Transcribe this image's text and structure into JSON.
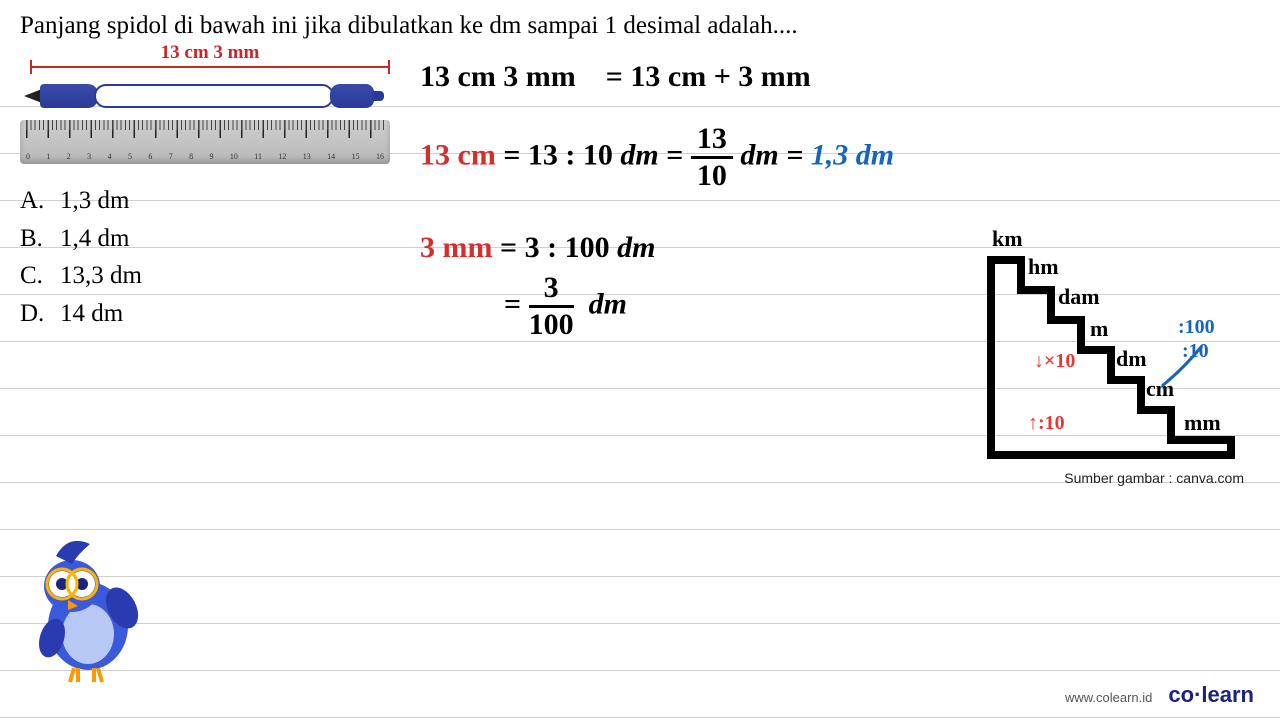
{
  "question": "Panjang spidol di bawah ini jika dibulatkan ke dm sampai 1 desimal adalah....",
  "measurement_label": "13 cm 3 mm",
  "ruler_range": [
    "0",
    "1",
    "2",
    "3",
    "4",
    "5",
    "6",
    "7",
    "8",
    "9",
    "10",
    "11",
    "12",
    "13",
    "14",
    "15",
    "16"
  ],
  "choices": [
    {
      "letter": "A.",
      "text": "1,3 dm"
    },
    {
      "letter": "B.",
      "text": "1,4 dm"
    },
    {
      "letter": "C.",
      "text": "13,3 dm"
    },
    {
      "letter": "D.",
      "text": "14 dm"
    }
  ],
  "handwriting": {
    "line1_lhs": "13 cm  3 mm",
    "line1_rhs": "= 13 cm + 3 mm",
    "line2_lhs": "13 cm",
    "line2_mid": " = 13 : 10 ",
    "line2_frac_top": "13",
    "line2_frac_bot": "10",
    "line2_result": "1,3 dm",
    "line3_lhs": "3 mm",
    "line3_rhs": " = 3 : 100 ",
    "line3_frac_top": "3",
    "line3_frac_bot": "100",
    "unit_dm": "dm",
    "colors": {
      "black": "#000000",
      "red": "#d32f2f",
      "blue": "#1565c0"
    }
  },
  "stairs": {
    "units": [
      "km",
      "hm",
      "dam",
      "m",
      "dm",
      "cm",
      "mm"
    ],
    "down_label": "×10",
    "up_label": ":10",
    "right_labels": [
      ":100",
      ":10"
    ],
    "stroke_color": "#000000",
    "stroke_width": 8
  },
  "caption": "Sumber gambar : canva.com",
  "footer_url": "www.colearn.id",
  "brand": "co·learn",
  "colors": {
    "accent_red": "#c62828",
    "marker_blue": "#2a3a98",
    "ruler_gray": "#b8b8b8",
    "line_gray": "#d0d0d0",
    "background": "#ffffff"
  }
}
